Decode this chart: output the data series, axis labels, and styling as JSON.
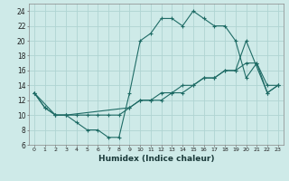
{
  "xlabel": "Humidex (Indice chaleur)",
  "bg_color": "#ceeae8",
  "grid_color": "#afd4d2",
  "line_color": "#1e6b65",
  "xlim": [
    -0.5,
    23.5
  ],
  "ylim": [
    6,
    25
  ],
  "xticks": [
    0,
    1,
    2,
    3,
    4,
    5,
    6,
    7,
    8,
    9,
    10,
    11,
    12,
    13,
    14,
    15,
    16,
    17,
    18,
    19,
    20,
    21,
    22,
    23
  ],
  "yticks": [
    6,
    8,
    10,
    12,
    14,
    16,
    18,
    20,
    22,
    24
  ],
  "line1_x": [
    0,
    1,
    2,
    3,
    4,
    5,
    6,
    7,
    8,
    9,
    10,
    11,
    12,
    13,
    14,
    15,
    16,
    17,
    18,
    19,
    20,
    21,
    22,
    23
  ],
  "line1_y": [
    13,
    11,
    10,
    10,
    9,
    8,
    8,
    7,
    7,
    13,
    20,
    21,
    23,
    23,
    22,
    24,
    23,
    22,
    22,
    20,
    15,
    17,
    14,
    14
  ],
  "line2_x": [
    0,
    1,
    2,
    3,
    4,
    5,
    6,
    7,
    8,
    9,
    10,
    11,
    12,
    13,
    14,
    15,
    16,
    17,
    18,
    19,
    20,
    21,
    22,
    23
  ],
  "line2_y": [
    13,
    11,
    10,
    10,
    10,
    10,
    10,
    10,
    10,
    11,
    12,
    12,
    13,
    13,
    14,
    14,
    15,
    15,
    16,
    16,
    17,
    17,
    13,
    14
  ],
  "line3_x": [
    0,
    2,
    3,
    9,
    10,
    11,
    12,
    13,
    14,
    15,
    16,
    17,
    18,
    19,
    20,
    22,
    23
  ],
  "line3_y": [
    13,
    10,
    10,
    11,
    12,
    12,
    12,
    13,
    13,
    14,
    15,
    15,
    16,
    16,
    20,
    13,
    14
  ]
}
